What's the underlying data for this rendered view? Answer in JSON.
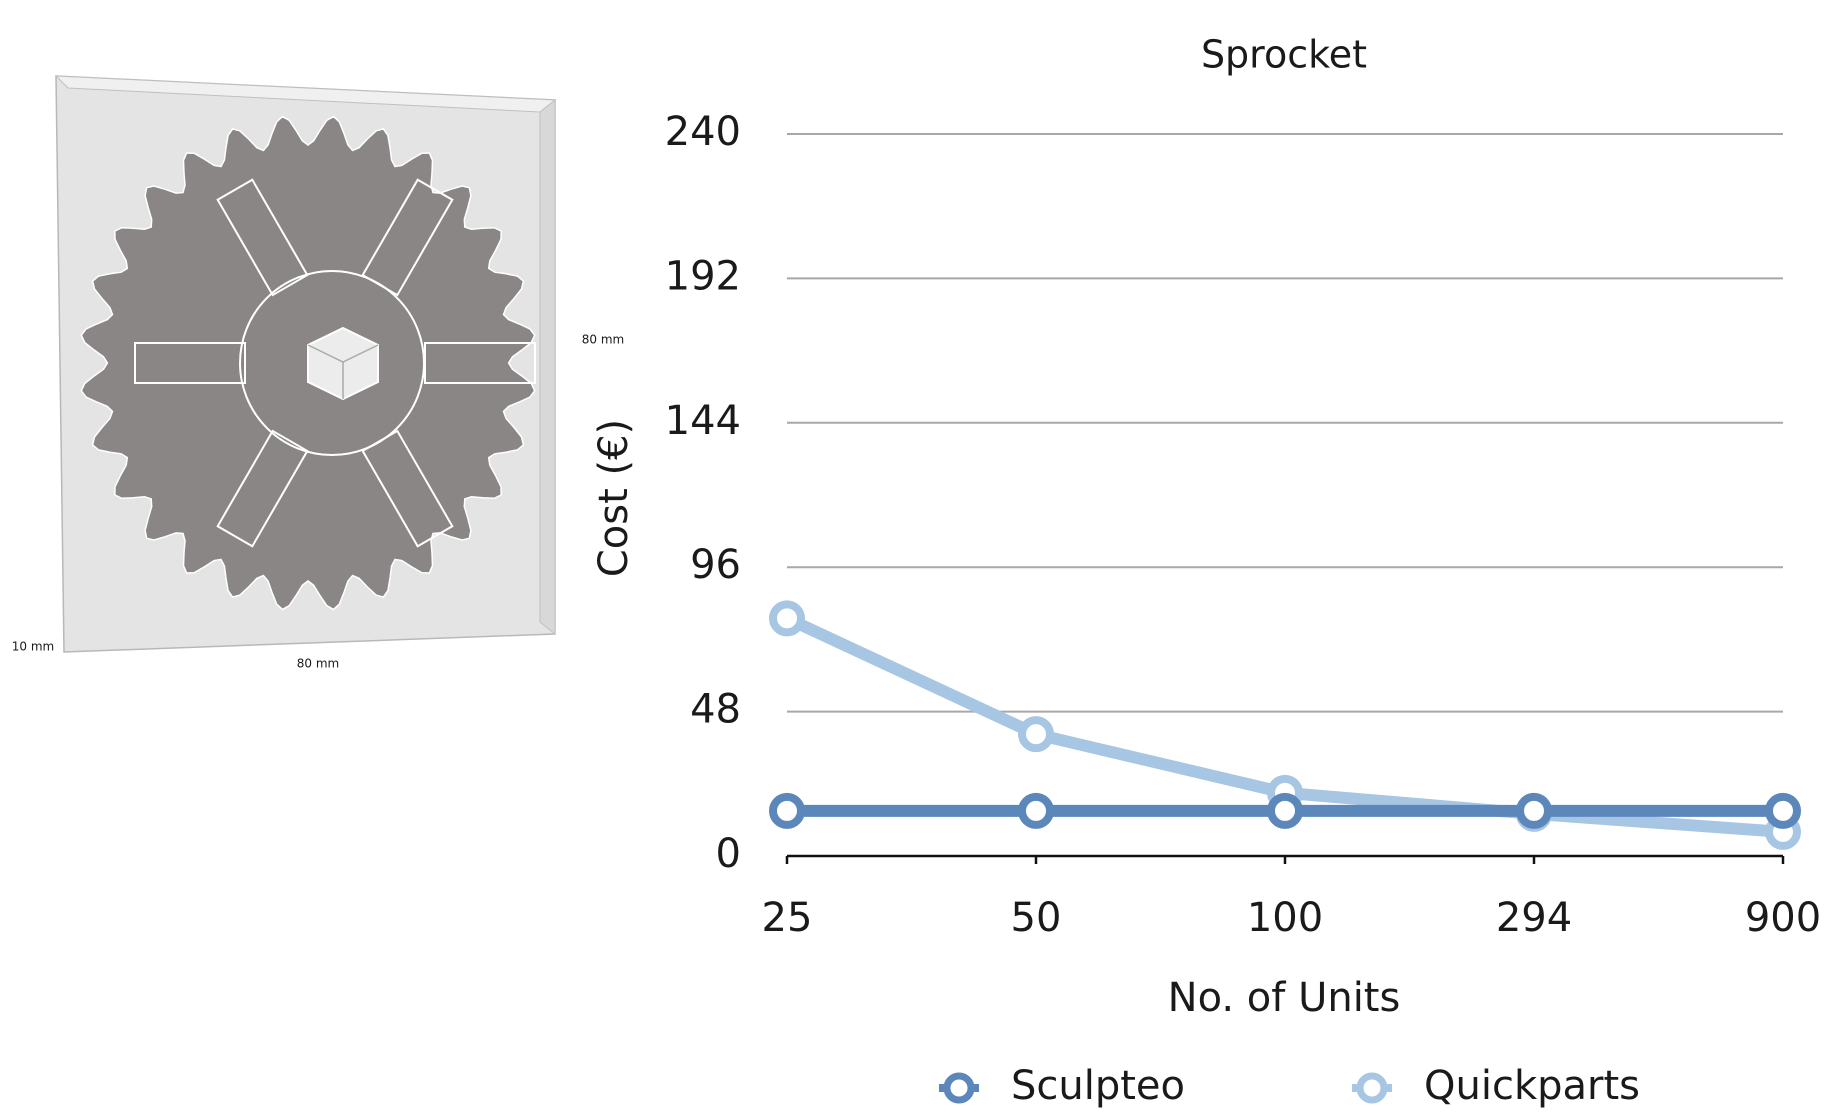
{
  "figure": {
    "dimension_labels": [
      "80 mm",
      "10 mm",
      "80 mm"
    ]
  },
  "chart_data": {
    "type": "line",
    "title": "Sprocket",
    "x_label": "No. of Units",
    "y_label": "Cost (€)",
    "categories": [
      "25",
      "50",
      "100",
      "294",
      "900"
    ],
    "series": [
      {
        "name": "Sculpteo",
        "color": "#5b87bb",
        "values": [
          15,
          15,
          15,
          15,
          15
        ]
      },
      {
        "name": "Quickparts",
        "color": "#a6c6e3",
        "values": [
          79,
          40.5,
          21,
          14,
          8
        ]
      }
    ],
    "ylim": [
      0,
      240
    ],
    "yticks": [
      0,
      48,
      96,
      144,
      192,
      240
    ],
    "grid": true,
    "legend": "bottom"
  }
}
